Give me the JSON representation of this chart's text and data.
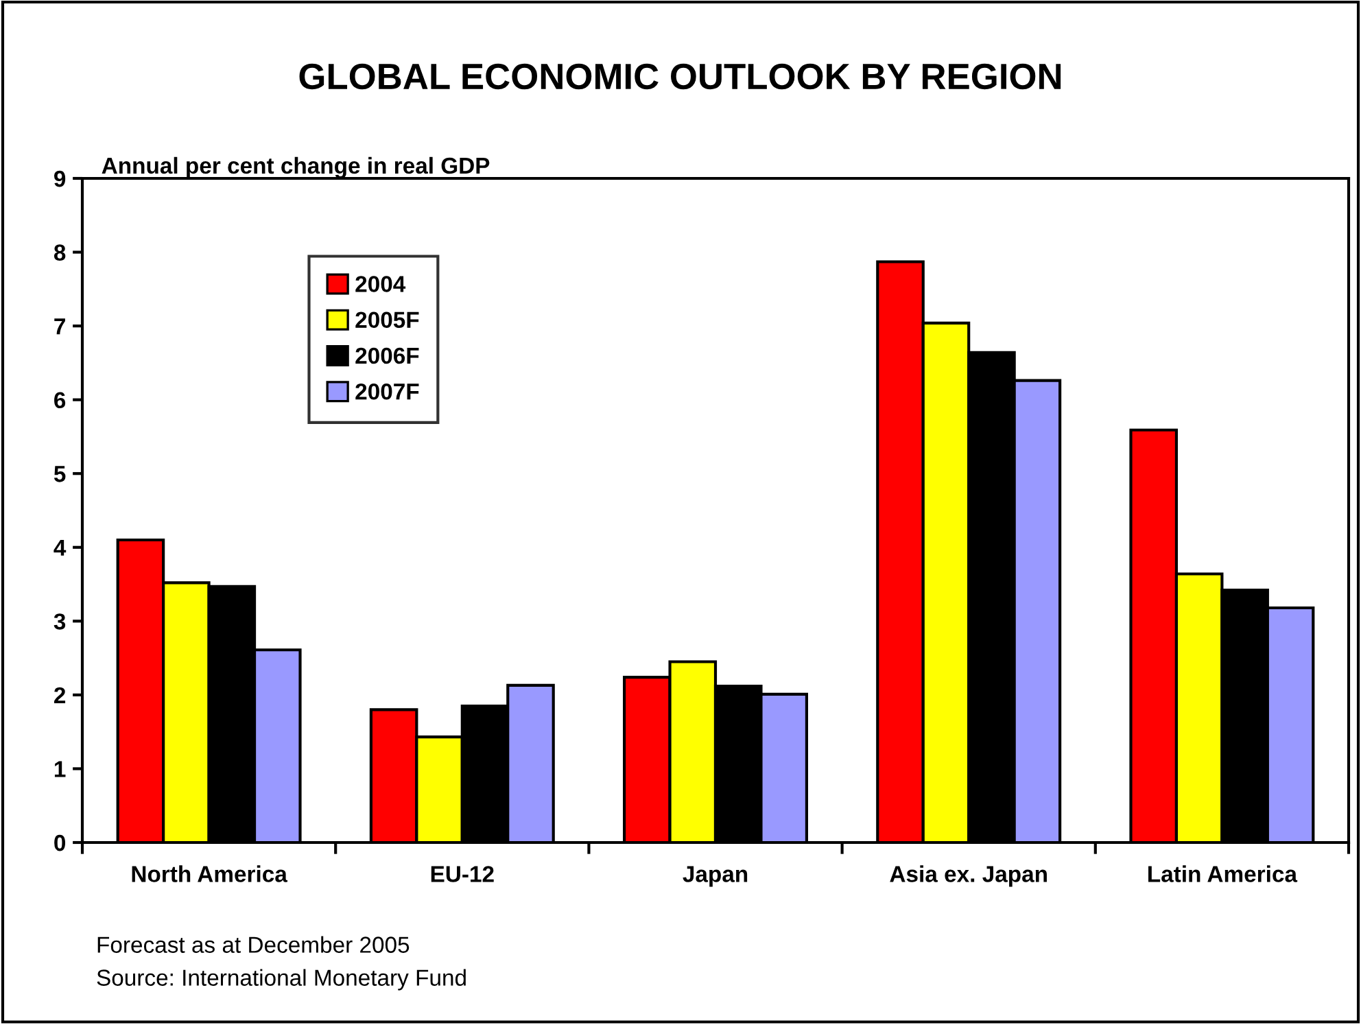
{
  "chart_data": {
    "type": "bar",
    "title": "GLOBAL ECONOMIC OUTLOOK BY REGION",
    "ylabel": "Annual per cent change in real GDP",
    "categories": [
      "North America",
      "EU-12",
      "Japan",
      "Asia ex. Japan",
      "Latin America"
    ],
    "series": [
      {
        "name": "2004",
        "color": "#ff0000",
        "values": [
          4.1,
          1.8,
          2.24,
          7.87,
          5.59
        ]
      },
      {
        "name": "2005F",
        "color": "#ffff00",
        "values": [
          3.52,
          1.43,
          2.45,
          7.04,
          3.64
        ]
      },
      {
        "name": "2006F",
        "color": "#000000",
        "values": [
          3.47,
          1.85,
          2.12,
          6.64,
          3.42
        ]
      },
      {
        "name": "2007F",
        "color": "#9999ff",
        "values": [
          2.61,
          2.13,
          2.01,
          6.26,
          3.18
        ]
      }
    ],
    "ylim": [
      0,
      9
    ],
    "yticks": [
      0,
      1,
      2,
      3,
      4,
      5,
      6,
      7,
      8,
      9
    ],
    "grid": false,
    "legend": "top left",
    "annotations": [
      "Forecast as at December 2005",
      "Source: International Monetary Fund"
    ]
  }
}
